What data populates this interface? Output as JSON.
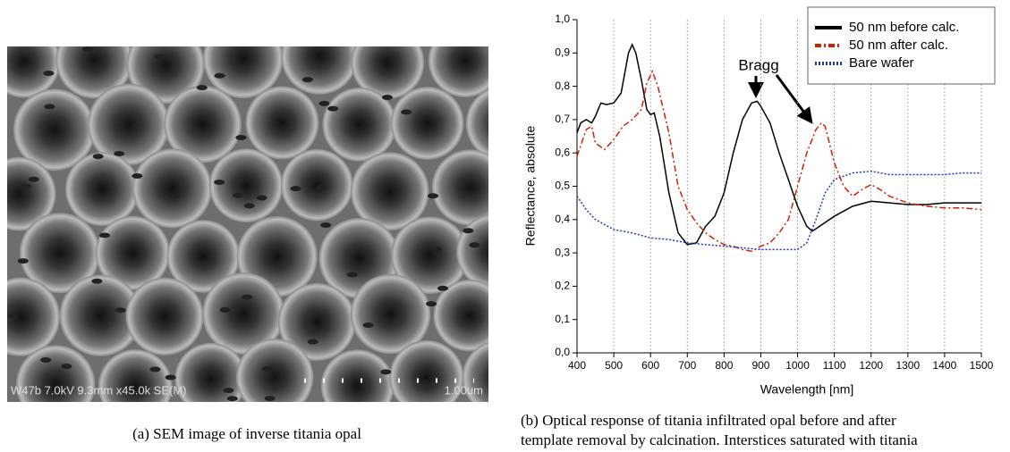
{
  "panel_a": {
    "info": "W47b 7.0kV 9.3mm x45.0k SE(M)",
    "scale": "1.00um"
  },
  "captions": {
    "a": "(a) SEM image of inverse titania opal",
    "b": [
      "(b) Optical response of titania infiltrated opal before and after",
      "template removal by calcination. Interstices saturated with titania"
    ]
  },
  "chart_data": {
    "type": "line",
    "xlabel": "Wavelength [nm]",
    "ylabel": "Reflectance, absolute",
    "annotation": "Bragg",
    "xlim": [
      400,
      1500
    ],
    "xticks": [
      400,
      500,
      600,
      700,
      800,
      900,
      1000,
      1100,
      1200,
      1300,
      1400,
      1500
    ],
    "ylim": [
      0,
      1
    ],
    "yticks": [
      {
        "value": 0,
        "label": "0,0"
      },
      {
        "value": 0.1,
        "label": "0,1"
      },
      {
        "value": 0.2,
        "label": "0,2"
      },
      {
        "value": 0.3,
        "label": "0,3"
      },
      {
        "value": 0.4,
        "label": "0,4"
      },
      {
        "value": 0.5,
        "label": "0,5"
      },
      {
        "value": 0.6,
        "label": "0,6"
      },
      {
        "value": 0.7,
        "label": "0,7"
      },
      {
        "value": 0.8,
        "label": "0,8"
      },
      {
        "value": 0.9,
        "label": "0,9"
      },
      {
        "value": 1,
        "label": "1,0"
      }
    ],
    "grid": "x",
    "legend": "top-right",
    "series": [
      {
        "name": "50 nm before calc.",
        "color": "#000000",
        "line_style": "solid",
        "x": [
          400,
          410,
          425,
          440,
          450,
          465,
          480,
          500,
          520,
          540,
          550,
          560,
          575,
          590,
          600,
          610,
          625,
          650,
          675,
          700,
          725,
          750,
          775,
          800,
          825,
          850,
          875,
          890,
          900,
          925,
          950,
          975,
          1000,
          1025,
          1040,
          1060,
          1100,
          1150,
          1200,
          1250,
          1300,
          1350,
          1400,
          1450,
          1500
        ],
        "values": [
          0.66,
          0.69,
          0.7,
          0.69,
          0.71,
          0.75,
          0.745,
          0.75,
          0.78,
          0.9,
          0.925,
          0.9,
          0.82,
          0.73,
          0.715,
          0.72,
          0.65,
          0.48,
          0.36,
          0.325,
          0.33,
          0.38,
          0.41,
          0.48,
          0.6,
          0.7,
          0.75,
          0.755,
          0.74,
          0.69,
          0.6,
          0.52,
          0.44,
          0.38,
          0.365,
          0.38,
          0.41,
          0.44,
          0.455,
          0.45,
          0.445,
          0.445,
          0.45,
          0.45,
          0.45
        ]
      },
      {
        "name": "50 nm after calc.",
        "color": "#cc2200",
        "line_style": "dashdot",
        "x": [
          400,
          425,
          440,
          450,
          475,
          500,
          525,
          550,
          575,
          590,
          605,
          620,
          650,
          675,
          700,
          725,
          750,
          775,
          800,
          825,
          850,
          875,
          900,
          925,
          950,
          975,
          1000,
          1025,
          1050,
          1065,
          1075,
          1100,
          1125,
          1150,
          1175,
          1200,
          1225,
          1250,
          1300,
          1350,
          1400,
          1450,
          1500
        ],
        "values": [
          0.59,
          0.67,
          0.68,
          0.63,
          0.61,
          0.64,
          0.68,
          0.7,
          0.73,
          0.81,
          0.845,
          0.8,
          0.66,
          0.5,
          0.43,
          0.39,
          0.36,
          0.34,
          0.325,
          0.32,
          0.31,
          0.305,
          0.32,
          0.33,
          0.36,
          0.4,
          0.5,
          0.6,
          0.67,
          0.69,
          0.68,
          0.57,
          0.5,
          0.47,
          0.49,
          0.505,
          0.49,
          0.47,
          0.45,
          0.44,
          0.435,
          0.435,
          0.43
        ]
      },
      {
        "name": "Bare wafer",
        "color": "#2233bb",
        "line_style": "dotted",
        "x": [
          400,
          425,
          450,
          500,
          550,
          600,
          650,
          700,
          750,
          800,
          850,
          900,
          950,
          1000,
          1025,
          1050,
          1075,
          1100,
          1150,
          1200,
          1250,
          1300,
          1350,
          1400,
          1450,
          1500
        ],
        "values": [
          0.47,
          0.43,
          0.4,
          0.37,
          0.36,
          0.345,
          0.34,
          0.33,
          0.325,
          0.32,
          0.315,
          0.31,
          0.31,
          0.31,
          0.33,
          0.4,
          0.48,
          0.52,
          0.54,
          0.545,
          0.535,
          0.535,
          0.535,
          0.535,
          0.54,
          0.54
        ]
      }
    ]
  }
}
